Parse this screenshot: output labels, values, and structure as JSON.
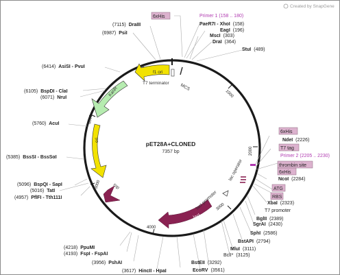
{
  "watermark": "Created by SnapGene",
  "plasmid": {
    "name": "pET28A+CLONED",
    "size": "7357 bp"
  },
  "ticks": [
    "1000",
    "2000",
    "3000",
    "4000",
    "5000",
    "6000",
    "7000"
  ],
  "features": {
    "f1_ori": "f1 ori",
    "kanr": "KanR",
    "ori": "ori",
    "rop": "rop",
    "laci": "lacI",
    "laci_promoter": "lacI promoter",
    "lac_operator": "lac operator",
    "t7_terminator": "T7 terminator",
    "mcs": "MCS",
    "t7_promoter": "T7 promoter"
  },
  "boxes": {
    "his_top": "6xHis",
    "his_a": "6xHis",
    "t7tag": "T7 tag",
    "thrombin": "thrombin site",
    "his_b": "6xHis",
    "atg": "ATG",
    "rbs": "RBS"
  },
  "primers": {
    "p1": "Primer 1  (158 .. 180)",
    "p2": "Primer 2  (2205 .. 2230)"
  },
  "sites_left": [
    {
      "pos": "(7115)",
      "name": "DraIII"
    },
    {
      "pos": "(6987)",
      "name": "PsiI"
    },
    {
      "pos": "(6414)",
      "name": "AsiSI - PvuI"
    },
    {
      "pos": "(6105)",
      "name": "BspDI - ClaI"
    },
    {
      "pos": "(6071)",
      "name": "NruI"
    },
    {
      "pos": "(5760)",
      "name": "AcuI"
    },
    {
      "pos": "(5385)",
      "name": "BssSI - BssSαI"
    },
    {
      "pos": "(5096)",
      "name": "BspQI - SapI"
    },
    {
      "pos": "(5016)",
      "name": "TatI"
    },
    {
      "pos": "(4957)",
      "name": "PflFI - Tth111I"
    },
    {
      "pos": "(4218)",
      "name": "PpuMI"
    },
    {
      "pos": "(4193)",
      "name": "FspI - FspAI"
    },
    {
      "pos": "(3956)",
      "name": "PshAI"
    }
  ],
  "sites_right": [
    {
      "name": "PaeR7I - XhoI",
      "pos": "(158)"
    },
    {
      "name": "EagI",
      "pos": "(196)"
    },
    {
      "name": "MscI",
      "pos": "(303)"
    },
    {
      "name": "DraI",
      "pos": "(364)"
    },
    {
      "name": "StuI",
      "pos": "(489)"
    },
    {
      "name": "NdeI",
      "pos": "(2226)"
    },
    {
      "name": "NcoI",
      "pos": "(2284)"
    },
    {
      "name": "XbaI",
      "pos": "(2323)"
    },
    {
      "name": "BglII",
      "pos": "(2389)"
    },
    {
      "name": "SgrAI",
      "pos": "(2430)"
    },
    {
      "name": "SphI",
      "pos": "(2586)"
    },
    {
      "name": "BstAPI",
      "pos": "(2794)"
    },
    {
      "name": "MluI",
      "pos": "(3111)"
    },
    {
      "name": "BclI*",
      "pos": "(3125)"
    },
    {
      "name": "BstEII",
      "pos": "(3292)"
    },
    {
      "name": "EcoRV",
      "pos": "(3561)"
    }
  ],
  "site_bottom": {
    "pos": "(3617)",
    "name": "HincII - HpaI"
  },
  "colors": {
    "backbone": "#1a1a1a",
    "ori": "#f2e200",
    "kanr": "#b6ecb0",
    "laci": "#8a2252",
    "box": "#dcb2ce",
    "primer": "#b03ab0",
    "tick_line": "#aaaaaa"
  }
}
